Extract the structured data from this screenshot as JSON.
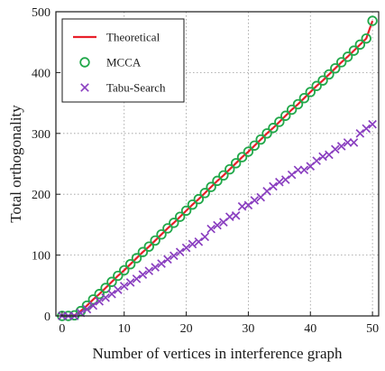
{
  "chart_data": {
    "type": "line",
    "title": "",
    "xlabel": "Number of vertices in interference graph",
    "ylabel": "Total orthogonality",
    "xlim": [
      -1,
      51
    ],
    "ylim": [
      0,
      500
    ],
    "xticks": [
      0,
      10,
      20,
      30,
      40,
      50
    ],
    "yticks": [
      0,
      100,
      200,
      300,
      400,
      500
    ],
    "xtick_labels": [
      "0",
      "10",
      "20",
      "30",
      "40",
      "50"
    ],
    "ytick_labels": [
      "0",
      "100",
      "200",
      "300",
      "400",
      "500"
    ],
    "grid": "dotted",
    "legend_position": "top-left",
    "series": [
      {
        "name": "Theoretical",
        "style": "line",
        "color": "#e8202a",
        "x": [
          0,
          1,
          2,
          3,
          4,
          5,
          6,
          7,
          8,
          9,
          10,
          11,
          12,
          13,
          14,
          15,
          16,
          17,
          18,
          19,
          20,
          21,
          22,
          23,
          24,
          25,
          26,
          27,
          28,
          29,
          30,
          31,
          32,
          33,
          34,
          35,
          36,
          37,
          38,
          39,
          40,
          41,
          42,
          43,
          44,
          45,
          46,
          47,
          48,
          49,
          50
        ],
        "y": [
          0,
          0,
          1,
          8,
          17,
          27,
          36,
          46,
          56,
          66,
          75,
          85,
          95,
          105,
          114,
          124,
          134,
          144,
          153,
          163,
          173,
          183,
          192,
          202,
          212,
          222,
          231,
          241,
          251,
          261,
          270,
          280,
          290,
          300,
          309,
          319,
          329,
          339,
          348,
          358,
          368,
          378,
          387,
          397,
          407,
          417,
          426,
          436,
          446,
          456,
          485
        ]
      },
      {
        "name": "MCCA",
        "style": "marker-circle",
        "color": "#21a84a",
        "x": [
          0,
          1,
          2,
          3,
          4,
          5,
          6,
          7,
          8,
          9,
          10,
          11,
          12,
          13,
          14,
          15,
          16,
          17,
          18,
          19,
          20,
          21,
          22,
          23,
          24,
          25,
          26,
          27,
          28,
          29,
          30,
          31,
          32,
          33,
          34,
          35,
          36,
          37,
          38,
          39,
          40,
          41,
          42,
          43,
          44,
          45,
          46,
          47,
          48,
          49,
          50
        ],
        "y": [
          0,
          0,
          1,
          8,
          17,
          27,
          36,
          46,
          56,
          66,
          75,
          85,
          95,
          105,
          114,
          124,
          134,
          144,
          153,
          163,
          173,
          183,
          192,
          202,
          212,
          222,
          231,
          241,
          251,
          261,
          270,
          280,
          290,
          300,
          309,
          319,
          329,
          339,
          348,
          358,
          368,
          378,
          387,
          397,
          407,
          417,
          426,
          436,
          446,
          456,
          485
        ]
      },
      {
        "name": "Tabu-Search",
        "style": "marker-x",
        "color": "#8a3fc0",
        "x": [
          0,
          1,
          2,
          3,
          4,
          5,
          6,
          7,
          8,
          9,
          10,
          11,
          12,
          13,
          14,
          15,
          16,
          17,
          18,
          19,
          20,
          21,
          22,
          23,
          24,
          25,
          26,
          27,
          28,
          29,
          30,
          31,
          32,
          33,
          34,
          35,
          36,
          37,
          38,
          39,
          40,
          41,
          42,
          43,
          44,
          45,
          46,
          47,
          48,
          49,
          50
        ],
        "y": [
          0,
          0,
          0,
          5,
          11,
          17,
          24,
          30,
          36,
          43,
          49,
          55,
          61,
          68,
          74,
          80,
          86,
          93,
          99,
          105,
          112,
          118,
          122,
          130,
          143,
          149,
          154,
          163,
          165,
          180,
          182,
          190,
          195,
          205,
          213,
          220,
          224,
          232,
          240,
          240,
          246,
          255,
          262,
          265,
          274,
          279,
          285,
          285,
          300,
          308,
          315
        ]
      }
    ]
  }
}
